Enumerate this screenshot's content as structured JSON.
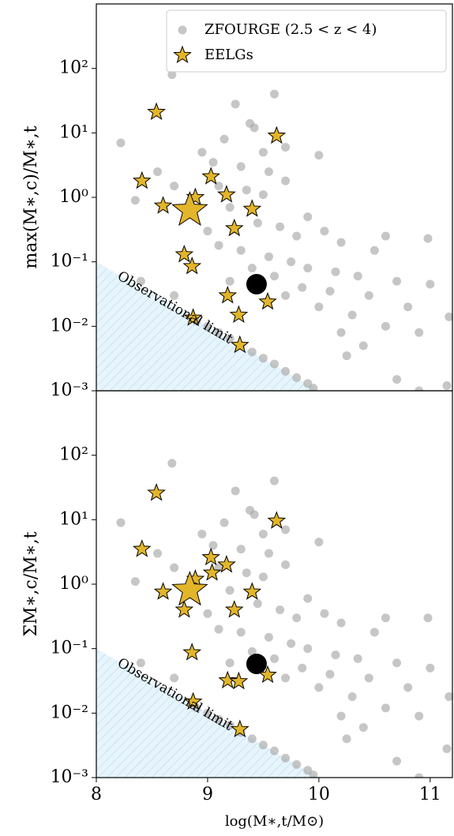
{
  "chart_data": [
    {
      "type": "scatter",
      "ylabel": "max(M∗,c)/M∗,t",
      "log_y": true,
      "legend": "upper right",
      "xlim": [
        8,
        11.2
      ],
      "ylim": [
        0.001,
        1000
      ],
      "yticks": [
        {
          "value": 0.001,
          "label": "10⁻³"
        },
        {
          "value": 0.01,
          "label": "10⁻²"
        },
        {
          "value": 0.1,
          "label": "10⁻¹"
        },
        {
          "value": 1,
          "label": "10⁰"
        },
        {
          "value": 10,
          "label": "10¹"
        },
        {
          "value": 100,
          "label": "10²"
        }
      ],
      "shade": {
        "label": "Observational limit",
        "color": "#d6ecfa",
        "x": [
          8,
          10
        ],
        "y": [
          0.1,
          0.001
        ]
      },
      "series": [
        {
          "name": "ZFOURGE (2.5 < z < 4)",
          "color": "#a8a8a8",
          "marker": "circle",
          "size": "small",
          "x": [
            8.22,
            8.68,
            9.25,
            9.6,
            9.38,
            9.42,
            9.15,
            9.5,
            9.7,
            8.95,
            9.05,
            9.3,
            9.55,
            10.0,
            8.55,
            8.7,
            9.1,
            9.35,
            9.5,
            9.7,
            9.9,
            8.35,
            9.2,
            9.45,
            9.65,
            9.8,
            10.05,
            10.2,
            10.5,
            10.6,
            9.0,
            9.1,
            9.3,
            9.55,
            9.75,
            9.9,
            10.15,
            10.35,
            10.7,
            9.4,
            9.6,
            9.85,
            10.1,
            10.45,
            10.8,
            9.2,
            9.7,
            10.0,
            10.3,
            10.6,
            10.9,
            11.17,
            8.4,
            8.7,
            10.2,
            10.4,
            10.25,
            10.7,
            10.9,
            11.15,
            10.98,
            11.0,
            8.9,
            9.0,
            9.1,
            9.2,
            9.3,
            9.4,
            9.5,
            9.6,
            9.7,
            9.8,
            9.9,
            9.95
          ],
          "values": [
            7,
            80,
            28,
            40,
            14,
            12,
            8,
            5,
            6,
            5,
            3.5,
            3,
            2.5,
            4.5,
            2.5,
            1.5,
            1.5,
            1.3,
            1.1,
            1.8,
            0.5,
            0.9,
            0.7,
            0.4,
            0.35,
            0.25,
            0.3,
            0.2,
            0.15,
            0.25,
            0.3,
            0.18,
            0.15,
            0.12,
            0.1,
            0.08,
            0.07,
            0.06,
            0.05,
            0.08,
            0.06,
            0.04,
            0.035,
            0.03,
            0.02,
            0.05,
            0.03,
            0.02,
            0.015,
            0.01,
            0.008,
            0.014,
            0.05,
            0.03,
            0.008,
            0.005,
            0.0035,
            0.0015,
            0.001,
            0.0012,
            0.23,
            0.045,
            0.012,
            0.01,
            0.008,
            0.0065,
            0.005,
            0.004,
            0.0032,
            0.0026,
            0.002,
            0.0016,
            0.0013,
            0.0011
          ]
        },
        {
          "name": "EELGs",
          "color": "#e3b52a",
          "marker": "star",
          "size": "small",
          "x": [
            8.54,
            9.62,
            8.41,
            9.03,
            8.89,
            9.17,
            8.6,
            9.4,
            9.24,
            8.79,
            8.86,
            9.18,
            9.54,
            9.28,
            8.87,
            9.29
          ],
          "values": [
            21,
            9,
            1.8,
            2.1,
            1.0,
            1.1,
            0.74,
            0.66,
            0.33,
            0.13,
            0.085,
            0.03,
            0.024,
            0.015,
            0.0135,
            0.0051
          ]
        },
        {
          "color": "#e3b52a",
          "marker": "star",
          "size": "large",
          "x": [
            8.84
          ],
          "values": [
            0.63
          ]
        },
        {
          "color": "#000000",
          "marker": "circle",
          "size": "large",
          "x": [
            9.44
          ],
          "values": [
            0.045
          ]
        }
      ]
    },
    {
      "type": "scatter",
      "ylabel": "ΣM∗,c/M∗,t",
      "xlabel": "log(M∗,t/M⊙)",
      "log_y": true,
      "xlim": [
        8,
        11.2
      ],
      "ylim": [
        0.001,
        1000
      ],
      "xticks": [
        8,
        9,
        10,
        11
      ],
      "yticks": [
        {
          "value": 0.001,
          "label": "10⁻³"
        },
        {
          "value": 0.01,
          "label": "10⁻²"
        },
        {
          "value": 0.1,
          "label": "10⁻¹"
        },
        {
          "value": 1,
          "label": "10⁰"
        },
        {
          "value": 10,
          "label": "10¹"
        },
        {
          "value": 100,
          "label": "10²"
        }
      ],
      "shade": {
        "label": "Observational limit",
        "color": "#d6ecfa",
        "x": [
          8,
          10
        ],
        "y": [
          0.1,
          0.001
        ]
      },
      "series": [
        {
          "color": "#a8a8a8",
          "marker": "circle",
          "size": "small",
          "x": [
            8.22,
            8.68,
            9.25,
            9.6,
            9.38,
            9.42,
            9.15,
            9.5,
            9.7,
            8.95,
            9.05,
            9.3,
            9.55,
            10.0,
            8.55,
            8.7,
            9.1,
            9.35,
            9.5,
            9.7,
            9.9,
            8.35,
            9.2,
            9.45,
            9.65,
            9.8,
            10.05,
            10.2,
            10.5,
            10.6,
            9.0,
            9.1,
            9.3,
            9.55,
            9.75,
            9.9,
            10.15,
            10.35,
            10.7,
            9.4,
            9.6,
            9.85,
            10.1,
            10.45,
            10.8,
            9.2,
            9.7,
            10.0,
            10.3,
            10.6,
            10.9,
            11.17,
            8.4,
            8.7,
            10.2,
            10.4,
            10.25,
            10.7,
            10.9,
            11.15,
            10.98,
            11.0,
            8.9,
            9.0,
            9.1,
            9.2,
            9.3,
            9.4,
            9.5,
            9.6,
            9.7,
            9.8,
            9.9,
            9.95
          ],
          "values": [
            9,
            75,
            28,
            40,
            14,
            12,
            9,
            6,
            7,
            6,
            4,
            3.5,
            3,
            4.5,
            3,
            1.8,
            1.8,
            1.5,
            1.3,
            2,
            0.6,
            1.1,
            0.8,
            0.5,
            0.4,
            0.3,
            0.35,
            0.25,
            0.18,
            0.3,
            0.35,
            0.2,
            0.18,
            0.15,
            0.12,
            0.1,
            0.08,
            0.07,
            0.06,
            0.09,
            0.07,
            0.05,
            0.04,
            0.035,
            0.025,
            0.06,
            0.035,
            0.025,
            0.018,
            0.012,
            0.009,
            0.018,
            0.06,
            0.035,
            0.009,
            0.006,
            0.004,
            0.0018,
            0.001,
            0.0028,
            0.3,
            0.05,
            0.012,
            0.01,
            0.008,
            0.0065,
            0.005,
            0.004,
            0.0032,
            0.0026,
            0.002,
            0.0016,
            0.0013,
            0.0011
          ]
        },
        {
          "color": "#e3b52a",
          "marker": "star",
          "size": "small",
          "x": [
            8.54,
            9.62,
            8.41,
            9.03,
            9.17,
            9.04,
            8.89,
            8.6,
            9.4,
            8.79,
            9.24,
            8.86,
            9.18,
            9.28,
            9.54,
            8.87,
            9.29
          ],
          "values": [
            26,
            9.6,
            3.5,
            2.6,
            2.0,
            1.5,
            1.2,
            0.76,
            0.76,
            0.4,
            0.4,
            0.087,
            0.032,
            0.031,
            0.039,
            0.015,
            0.0056
          ]
        },
        {
          "color": "#e3b52a",
          "marker": "star",
          "size": "large",
          "x": [
            8.84
          ],
          "values": [
            0.81
          ]
        },
        {
          "color": "#000000",
          "marker": "circle",
          "size": "large",
          "x": [
            9.44
          ],
          "values": [
            0.058
          ]
        }
      ]
    }
  ]
}
